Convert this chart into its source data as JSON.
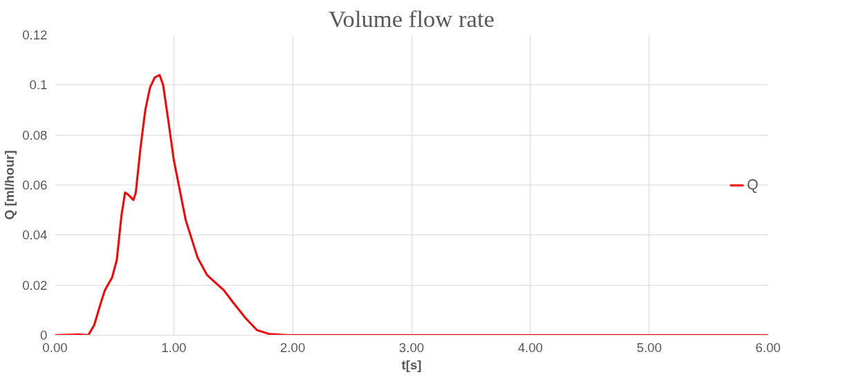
{
  "chart_data": {
    "type": "line",
    "title": "Volume flow rate",
    "xlabel": "t[s]",
    "ylabel": "Q [ml/hour]",
    "xlim": [
      0,
      6
    ],
    "xticks": [
      {
        "value": 0,
        "label": "0.00"
      },
      {
        "value": 1,
        "label": "1.00"
      },
      {
        "value": 2,
        "label": "2.00"
      },
      {
        "value": 3,
        "label": "3.00"
      },
      {
        "value": 4,
        "label": "4.00"
      },
      {
        "value": 5,
        "label": "5.00"
      },
      {
        "value": 6,
        "label": "6.00"
      }
    ],
    "ylim": [
      0,
      0.12
    ],
    "yticks": [
      0,
      0.02,
      0.04,
      0.06,
      0.08,
      0.1,
      0.12
    ],
    "grid": true,
    "legend": "right",
    "marker": "none",
    "line_style": "solid",
    "series": [
      {
        "name": "Q",
        "color": "#ff0000",
        "x": [
          0.0,
          0.2,
          0.28,
          0.33,
          0.38,
          0.42,
          0.48,
          0.52,
          0.56,
          0.59,
          0.62,
          0.66,
          0.68,
          0.72,
          0.76,
          0.8,
          0.84,
          0.88,
          0.91,
          0.95,
          1.0,
          1.05,
          1.1,
          1.2,
          1.28,
          1.35,
          1.42,
          1.5,
          1.6,
          1.7,
          1.8,
          1.95,
          2.5,
          3,
          4,
          5,
          6
        ],
        "values": [
          0,
          0.0003,
          0,
          0.004,
          0.012,
          0.018,
          0.023,
          0.03,
          0.048,
          0.057,
          0.056,
          0.054,
          0.057,
          0.075,
          0.09,
          0.099,
          0.103,
          0.104,
          0.1,
          0.087,
          0.07,
          0.058,
          0.046,
          0.031,
          0.024,
          0.021,
          0.018,
          0.013,
          0.007,
          0.002,
          0.0005,
          0,
          0,
          0,
          0,
          0,
          0
        ]
      }
    ]
  }
}
